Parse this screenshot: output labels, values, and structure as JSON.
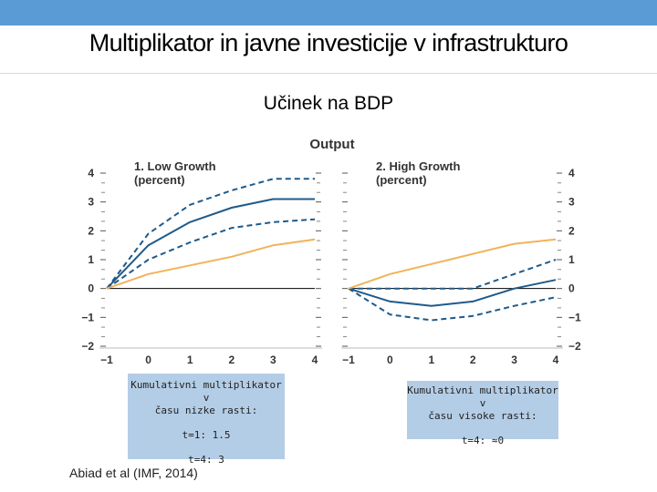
{
  "slide": {
    "title": "Multiplikator in javne investicije v infrastrukturo",
    "subtitle": "Učinek na BDP",
    "citation": "Abiad et al (IMF, 2014)"
  },
  "notes": {
    "low": {
      "line1": "Kumulativni multiplikator v",
      "line2": "času nizke rasti:",
      "line3": "t=1: 1.5",
      "line4": "t=4: 3"
    },
    "high": {
      "line1": "Kumulativni multiplikator v",
      "line2": "času visoke rasti:",
      "line3": "t=4: ≈0"
    }
  },
  "colors": {
    "accent_bar": "#5b9bd5",
    "estimate": "#1f5a8a",
    "benchmark": "#f2b25a",
    "note_bg": "#b4cde6"
  },
  "chart_data": [
    {
      "type": "line",
      "super_title": "Output",
      "title": "1. Low Growth",
      "subtitle": "(percent)",
      "x": [
        -1,
        0,
        1,
        2,
        3,
        4
      ],
      "ylim": [
        -2,
        4
      ],
      "yticks": [
        -2,
        -1,
        0,
        1,
        2,
        3,
        4
      ],
      "tick_labels_y": [
        "−2",
        "−1",
        "0",
        "1",
        "2",
        "3",
        "4"
      ],
      "tick_labels_x": [
        "−1",
        "0",
        "1",
        "2",
        "3",
        "4"
      ],
      "series": [
        {
          "name": "upper",
          "style": "dashed",
          "color": "#1f5a8a",
          "values": [
            0,
            1.9,
            2.9,
            3.4,
            3.8,
            3.8
          ]
        },
        {
          "name": "estimate",
          "style": "solid",
          "color": "#1f5a8a",
          "values": [
            0,
            1.5,
            2.3,
            2.8,
            3.1,
            3.1
          ]
        },
        {
          "name": "lower",
          "style": "dashed",
          "color": "#1f5a8a",
          "values": [
            0,
            1.0,
            1.6,
            2.1,
            2.3,
            2.4
          ]
        },
        {
          "name": "benchmark",
          "style": "solid",
          "color": "#f2b25a",
          "values": [
            0,
            0.5,
            0.8,
            1.1,
            1.5,
            1.7
          ]
        }
      ]
    },
    {
      "type": "line",
      "title": "2. High Growth",
      "subtitle": "(percent)",
      "x": [
        -1,
        0,
        1,
        2,
        3,
        4
      ],
      "ylim": [
        -2,
        4
      ],
      "yticks": [
        -2,
        -1,
        0,
        1,
        2,
        3,
        4
      ],
      "tick_labels_y": [
        "−2",
        "−1",
        "0",
        "1",
        "2",
        "3",
        "4"
      ],
      "tick_labels_x": [
        "−1",
        "0",
        "1",
        "2",
        "3",
        "4"
      ],
      "series": [
        {
          "name": "upper",
          "style": "dashed",
          "color": "#1f5a8a",
          "values": [
            0,
            0,
            0,
            0,
            0.5,
            1.0
          ]
        },
        {
          "name": "estimate",
          "style": "solid",
          "color": "#1f5a8a",
          "values": [
            0,
            -0.45,
            -0.6,
            -0.45,
            0,
            0.3
          ]
        },
        {
          "name": "lower",
          "style": "dashed",
          "color": "#1f5a8a",
          "values": [
            0,
            -0.9,
            -1.1,
            -0.95,
            -0.6,
            -0.3
          ]
        },
        {
          "name": "benchmark",
          "style": "solid",
          "color": "#f2b25a",
          "values": [
            0,
            0.5,
            0.85,
            1.2,
            1.55,
            1.7
          ]
        }
      ]
    }
  ]
}
